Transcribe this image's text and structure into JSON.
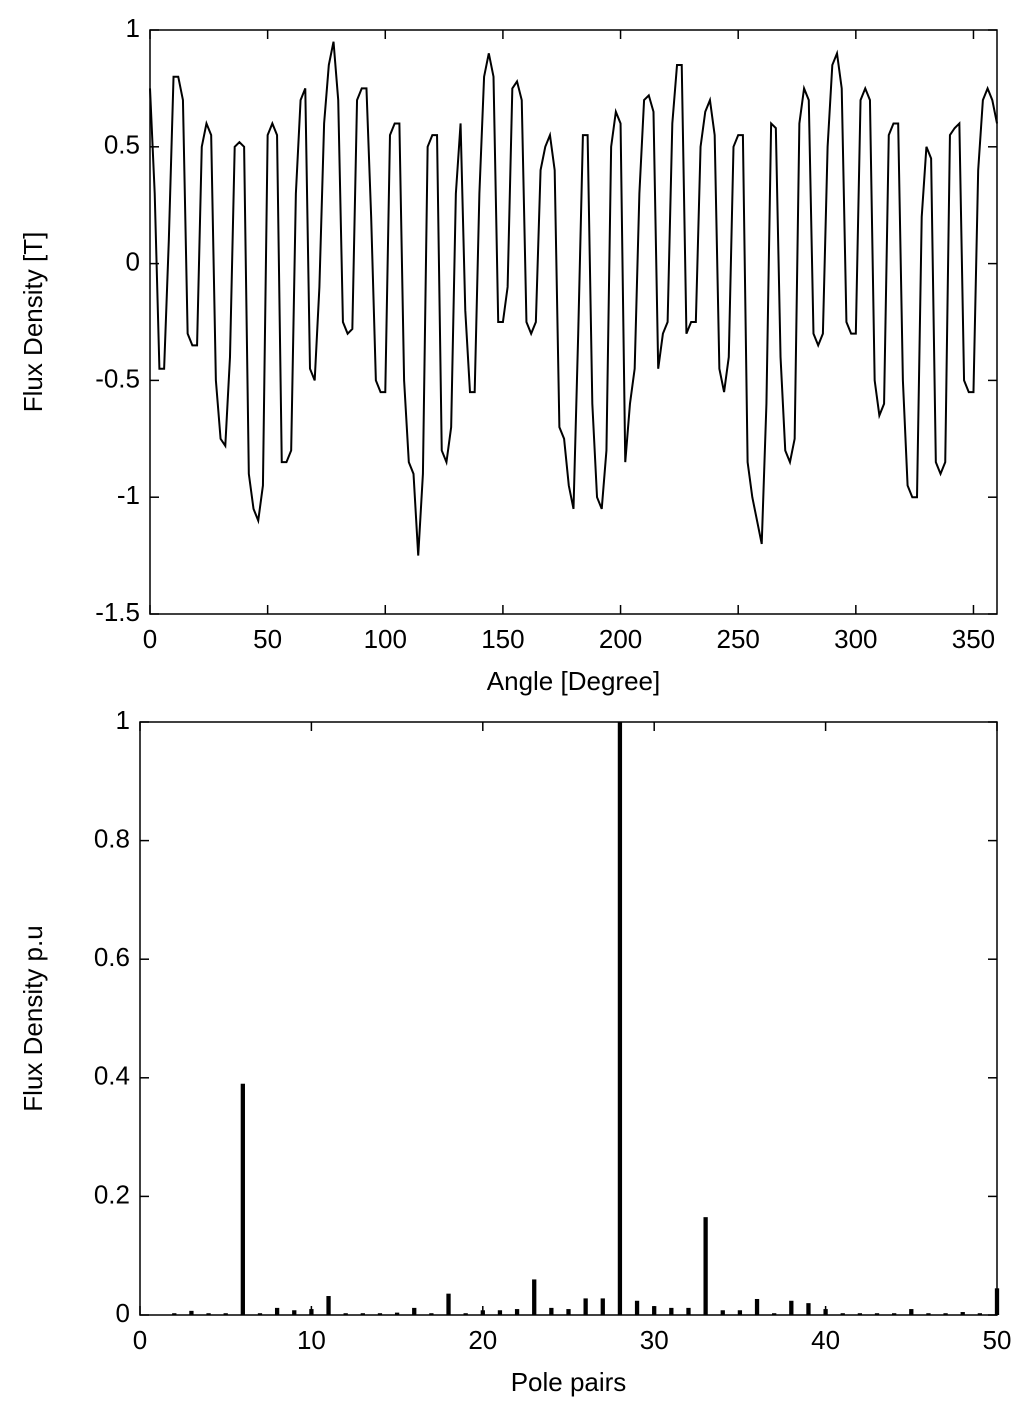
{
  "chart_data": [
    {
      "type": "line",
      "xlabel": "Angle [Degree]",
      "ylabel": "Flux Density [T]",
      "color": "#000000",
      "xlim": [
        0,
        360
      ],
      "ylim": [
        -1.5,
        1
      ],
      "xticks": [
        0,
        50,
        100,
        150,
        200,
        250,
        300,
        350
      ],
      "yticks": [
        -1.5,
        -1,
        -0.5,
        0,
        0.5,
        1
      ],
      "x": [
        0,
        2,
        4,
        6,
        8,
        10,
        12,
        14,
        16,
        18,
        20,
        22,
        24,
        26,
        28,
        30,
        32,
        34,
        36,
        38,
        40,
        42,
        44,
        46,
        48,
        50,
        52,
        54,
        56,
        58,
        60,
        62,
        64,
        66,
        68,
        70,
        72,
        74,
        76,
        78,
        80,
        82,
        84,
        86,
        88,
        90,
        92,
        94,
        96,
        98,
        100,
        102,
        104,
        106,
        108,
        110,
        112,
        114,
        116,
        118,
        120,
        122,
        124,
        126,
        128,
        130,
        132,
        134,
        136,
        138,
        140,
        142,
        144,
        146,
        148,
        150,
        152,
        154,
        156,
        158,
        160,
        162,
        164,
        166,
        168,
        170,
        172,
        174,
        176,
        178,
        180,
        182,
        184,
        186,
        188,
        190,
        192,
        194,
        196,
        198,
        200,
        202,
        204,
        206,
        208,
        210,
        212,
        214,
        216,
        218,
        220,
        222,
        224,
        226,
        228,
        230,
        232,
        234,
        236,
        238,
        240,
        242,
        244,
        246,
        248,
        250,
        252,
        254,
        256,
        258,
        260,
        262,
        264,
        266,
        268,
        270,
        272,
        274,
        276,
        278,
        280,
        282,
        284,
        286,
        288,
        290,
        292,
        294,
        296,
        298,
        300,
        302,
        304,
        306,
        308,
        310,
        312,
        314,
        316,
        318,
        320,
        322,
        324,
        326,
        328,
        330,
        332,
        334,
        336,
        338,
        340,
        342,
        344,
        346,
        348,
        350,
        352,
        354,
        356,
        358,
        360
      ],
      "values": [
        0.75,
        0.3,
        -0.45,
        -0.45,
        0.1,
        0.8,
        0.8,
        0.7,
        -0.3,
        -0.35,
        -0.35,
        0.5,
        0.6,
        0.55,
        -0.5,
        -0.75,
        -0.78,
        -0.4,
        0.5,
        0.52,
        0.5,
        -0.9,
        -1.05,
        -1.1,
        -0.95,
        0.55,
        0.6,
        0.55,
        -0.85,
        -0.85,
        -0.8,
        0.3,
        0.7,
        0.75,
        -0.45,
        -0.5,
        -0.1,
        0.6,
        0.85,
        0.95,
        0.7,
        -0.25,
        -0.3,
        -0.28,
        0.7,
        0.75,
        0.75,
        0.2,
        -0.5,
        -0.55,
        -0.55,
        0.55,
        0.6,
        0.6,
        -0.5,
        -0.85,
        -0.9,
        -1.25,
        -0.9,
        0.5,
        0.55,
        0.55,
        -0.8,
        -0.85,
        -0.7,
        0.3,
        0.6,
        -0.2,
        -0.55,
        -0.55,
        0.3,
        0.8,
        0.9,
        0.8,
        -0.25,
        -0.25,
        -0.1,
        0.75,
        0.78,
        0.7,
        -0.25,
        -0.3,
        -0.25,
        0.4,
        0.5,
        0.55,
        0.4,
        -0.7,
        -0.75,
        -0.95,
        -1.05,
        -0.3,
        0.55,
        0.55,
        -0.6,
        -1.0,
        -1.05,
        -0.8,
        0.5,
        0.65,
        0.6,
        -0.85,
        -0.6,
        -0.45,
        0.3,
        0.7,
        0.72,
        0.65,
        -0.45,
        -0.3,
        -0.25,
        0.6,
        0.85,
        0.85,
        -0.3,
        -0.25,
        -0.25,
        0.5,
        0.65,
        0.7,
        0.55,
        -0.45,
        -0.55,
        -0.4,
        0.5,
        0.55,
        0.55,
        -0.85,
        -1.0,
        -1.1,
        -1.2,
        -0.6,
        0.6,
        0.58,
        -0.4,
        -0.8,
        -0.85,
        -0.75,
        0.6,
        0.75,
        0.7,
        -0.3,
        -0.35,
        -0.3,
        0.5,
        0.85,
        0.9,
        0.75,
        -0.25,
        -0.3,
        -0.3,
        0.7,
        0.75,
        0.7,
        -0.5,
        -0.65,
        -0.6,
        0.55,
        0.6,
        0.6,
        -0.5,
        -0.95,
        -1.0,
        -1.0,
        0.2,
        0.5,
        0.45,
        -0.85,
        -0.9,
        -0.85,
        0.55,
        0.58,
        0.6,
        -0.5,
        -0.55,
        -0.55,
        0.4,
        0.7,
        0.75,
        0.7,
        0.6
      ]
    },
    {
      "type": "bar",
      "xlabel": "Pole pairs",
      "ylabel": "Flux Density p.u",
      "color": "#000000",
      "xlim": [
        0,
        50
      ],
      "ylim": [
        0,
        1
      ],
      "xticks": [
        0,
        10,
        20,
        30,
        40,
        50
      ],
      "yticks": [
        0,
        0.2,
        0.4,
        0.6,
        0.8,
        1
      ],
      "x": [
        0,
        1,
        2,
        3,
        4,
        5,
        6,
        7,
        8,
        9,
        10,
        11,
        12,
        13,
        14,
        15,
        16,
        17,
        18,
        19,
        20,
        21,
        22,
        23,
        24,
        25,
        26,
        27,
        28,
        29,
        30,
        31,
        32,
        33,
        34,
        35,
        36,
        37,
        38,
        39,
        40,
        41,
        42,
        43,
        44,
        45,
        46,
        47,
        48,
        49,
        50
      ],
      "values": [
        0,
        0,
        0.003,
        0.007,
        0.003,
        0.003,
        0.39,
        0.003,
        0.012,
        0.008,
        0.01,
        0.032,
        0.003,
        0.003,
        0.003,
        0.004,
        0.012,
        0.003,
        0.036,
        0.003,
        0.008,
        0.008,
        0.01,
        0.06,
        0.012,
        0.01,
        0.028,
        0.028,
        1,
        0.024,
        0.015,
        0.012,
        0.012,
        0.165,
        0.008,
        0.008,
        0.027,
        0.003,
        0.024,
        0.02,
        0.01,
        0.003,
        0.003,
        0.003,
        0.003,
        0.01,
        0.003,
        0.003,
        0.005,
        0.003,
        0.045
      ]
    }
  ]
}
